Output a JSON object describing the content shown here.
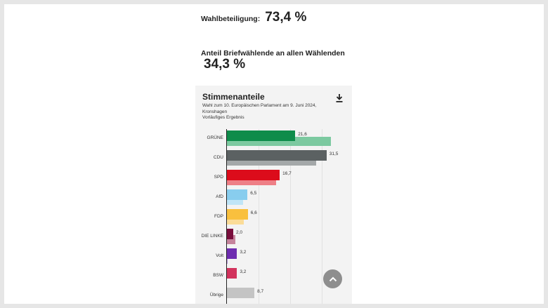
{
  "turnout": {
    "label": "Wahlbeteiligung:",
    "value": "73,4 %"
  },
  "postal": {
    "label": "Anteil Briefwählende an allen Wählenden",
    "value": "34,3 %"
  },
  "card": {
    "title": "Stimmenanteile",
    "subtitle_lines": [
      "Wahl zum 10. Europäischen Parlament am 9. Juni 2024,",
      "Kronshagen",
      "Vorläufiges Ergebnis"
    ],
    "download_icon": "download-icon"
  },
  "scroll_top_icon": "chevron-up-icon",
  "chart_data": {
    "type": "bar",
    "orientation": "horizontal",
    "categories": [
      "GRÜNE",
      "CDU",
      "SPD",
      "AfD",
      "FDP",
      "DIE LINKE",
      "Volt",
      "BSW",
      "Übrige"
    ],
    "series": [
      {
        "values": [
          21.6,
          31.5,
          16.7,
          6.5,
          6.6,
          2.0,
          3.2,
          3.2,
          8.7
        ],
        "labels": [
          "21,6",
          "31,5",
          "16,7",
          "6,5",
          "6,6",
          "2,0",
          "3,2",
          "3,2",
          "8,7"
        ]
      },
      {
        "values": [
          32.8,
          28.3,
          15.6,
          5.1,
          5.4,
          2.7,
          0.3,
          null,
          null
        ]
      }
    ],
    "colors": [
      "#0e8c4a",
      "#5b6162",
      "#dc0c1b",
      "#88cdee",
      "#f9c03e",
      "#7a0e3c",
      "#6e2db0",
      "#d2335d",
      "#c4c4c4"
    ],
    "prev_colors": [
      "#7cc9a0",
      "#a4a8a9",
      "#ee7f86",
      "#c0e5f7",
      "#fbdc98",
      "#c5849c",
      "#b491d7",
      "#e9a0b3",
      "#e1e1e1"
    ],
    "xlim": [
      0,
      40
    ],
    "grid": true
  }
}
